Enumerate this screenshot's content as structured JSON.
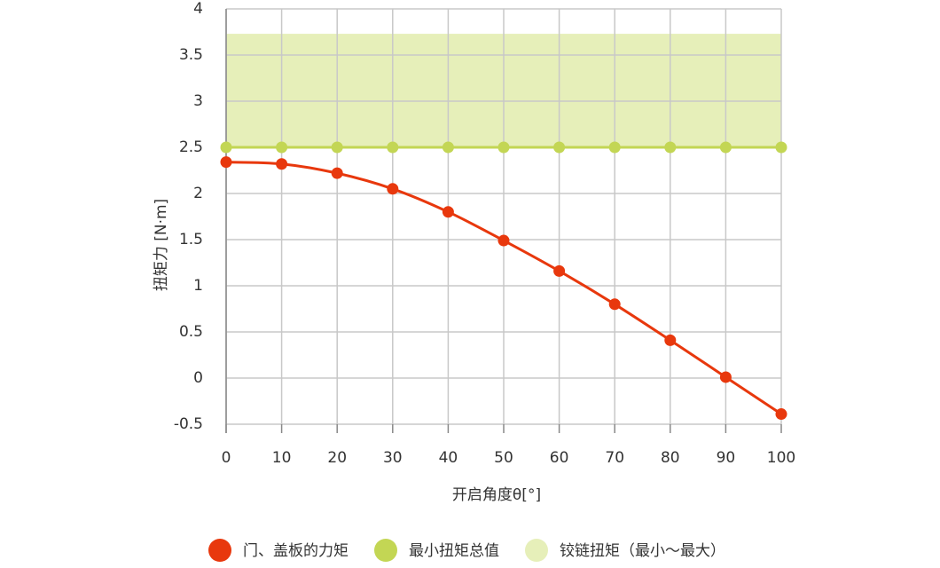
{
  "chart_data": {
    "type": "line",
    "x_label": "开启角度θ[°]",
    "y_label": "扭矩力 [N·m]",
    "x": [
      0,
      10,
      20,
      30,
      40,
      50,
      60,
      70,
      80,
      90,
      100
    ],
    "series": [
      {
        "name": "门、盖板的力矩",
        "color": "#e8380d",
        "values": [
          2.34,
          2.32,
          2.22,
          2.05,
          1.8,
          1.49,
          1.16,
          0.8,
          0.41,
          0.01,
          -0.39
        ]
      },
      {
        "name": "最小扭矩总值",
        "color": "#c3d654",
        "values": [
          2.5,
          2.5,
          2.5,
          2.5,
          2.5,
          2.5,
          2.5,
          2.5,
          2.5,
          2.5,
          2.5
        ]
      }
    ],
    "band": {
      "name": "铰链扭矩（最小～最大）",
      "color": "#e6efb9",
      "low": 2.5,
      "high": 3.73
    },
    "xlim": [
      0,
      100
    ],
    "xticks": [
      0,
      10,
      20,
      30,
      40,
      50,
      60,
      70,
      80,
      90,
      100
    ],
    "ylim": [
      -0.5,
      4
    ],
    "yticks": [
      -0.5,
      0,
      0.5,
      1,
      1.5,
      2,
      2.5,
      3,
      3.5,
      4
    ],
    "grid": true,
    "legend": "bottom"
  }
}
